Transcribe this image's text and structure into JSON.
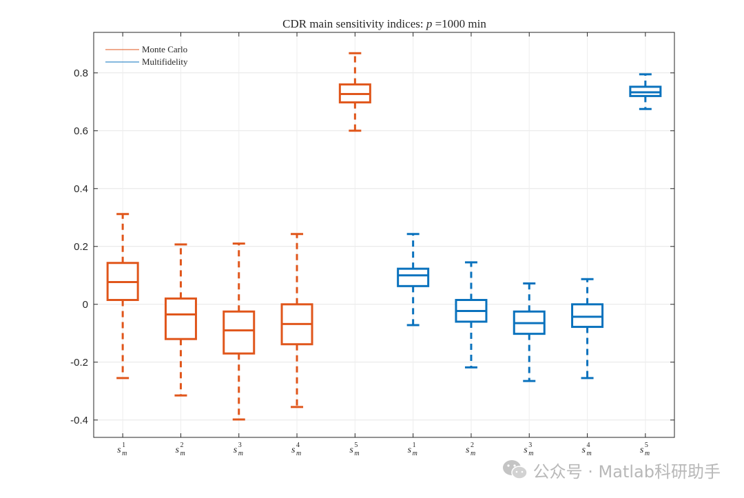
{
  "chart_data": {
    "type": "box",
    "title_parts": [
      "CDR main sensitivity indices: ",
      "p",
      " =1000 min"
    ],
    "xlabel": "",
    "ylabel": "",
    "ylim": [
      -0.46,
      0.94
    ],
    "yticks": [
      -0.4,
      -0.2,
      0,
      0.2,
      0.4,
      0.6,
      0.8
    ],
    "ytick_labels": [
      "-0.4",
      "-0.2",
      "0",
      "0.2",
      "0.4",
      "0.6",
      "0.8"
    ],
    "grid": true,
    "legend_position": "top-left",
    "categories": [
      "s_m^1",
      "s_m^2",
      "s_m^3",
      "s_m^4",
      "s_m^5",
      "s_m^1",
      "s_m^2",
      "s_m^3",
      "s_m^4",
      "s_m^5"
    ],
    "category_base": [
      "s",
      "s",
      "s",
      "s",
      "s",
      "s",
      "s",
      "s",
      "s",
      "s"
    ],
    "category_sub": [
      "m",
      "m",
      "m",
      "m",
      "m",
      "m",
      "m",
      "m",
      "m",
      "m"
    ],
    "category_sup": [
      "1",
      "2",
      "3",
      "4",
      "5",
      "1",
      "2",
      "3",
      "4",
      "5"
    ],
    "series": [
      {
        "name": "Monte Carlo",
        "color": "#e0561b",
        "positions": [
          1,
          2,
          3,
          4,
          5
        ],
        "boxes": [
          {
            "whisker_low": -0.255,
            "q1": 0.015,
            "median": 0.077,
            "q3": 0.143,
            "whisker_high": 0.312
          },
          {
            "whisker_low": -0.315,
            "q1": -0.12,
            "median": -0.035,
            "q3": 0.02,
            "whisker_high": 0.207
          },
          {
            "whisker_low": -0.398,
            "q1": -0.17,
            "median": -0.09,
            "q3": -0.025,
            "whisker_high": 0.21
          },
          {
            "whisker_low": -0.355,
            "q1": -0.138,
            "median": -0.068,
            "q3": 0.0,
            "whisker_high": 0.243
          },
          {
            "whisker_low": 0.6,
            "q1": 0.698,
            "median": 0.727,
            "q3": 0.76,
            "whisker_high": 0.868
          }
        ]
      },
      {
        "name": "Multifidelity",
        "color": "#0a72bd",
        "positions": [
          6,
          7,
          8,
          9,
          10
        ],
        "boxes": [
          {
            "whisker_low": -0.072,
            "q1": 0.063,
            "median": 0.1,
            "q3": 0.123,
            "whisker_high": 0.243
          },
          {
            "whisker_low": -0.218,
            "q1": -0.06,
            "median": -0.023,
            "q3": 0.015,
            "whisker_high": 0.145
          },
          {
            "whisker_low": -0.265,
            "q1": -0.102,
            "median": -0.065,
            "q3": -0.025,
            "whisker_high": 0.072
          },
          {
            "whisker_low": -0.255,
            "q1": -0.078,
            "median": -0.043,
            "q3": 0.0,
            "whisker_high": 0.087
          },
          {
            "whisker_low": 0.675,
            "q1": 0.72,
            "median": 0.733,
            "q3": 0.752,
            "whisker_high": 0.795
          }
        ]
      }
    ]
  },
  "watermark": {
    "text": "公众号 · Matlab科研助手",
    "icon": "wechat-icon",
    "color": "#b8b8b8"
  }
}
